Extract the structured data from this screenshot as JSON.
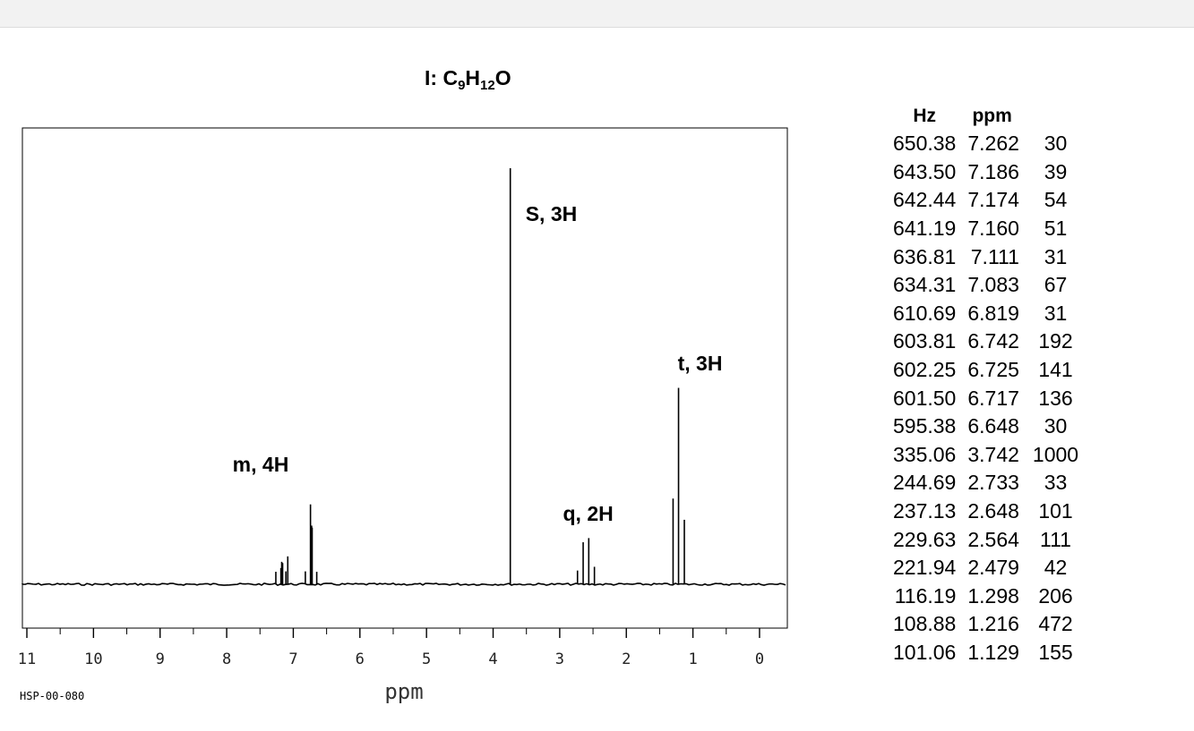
{
  "chart_data": {
    "type": "line",
    "title": "I: C9H12O",
    "title_parts": {
      "prefix": "I: C",
      "c_count": "9",
      "h_symbol": "H",
      "h_count": "12",
      "o_symbol": "O"
    },
    "xlabel": "ppm",
    "xlim": [
      11.0,
      -0.4
    ],
    "x_reversed": true,
    "x_ticks": [
      "11",
      "10",
      "9",
      "8",
      "7",
      "6",
      "5",
      "4",
      "3",
      "2",
      "1",
      "0"
    ],
    "grid": false,
    "annotations": [
      {
        "text": "m, 4H",
        "x": 7.1
      },
      {
        "text": "S, 3H",
        "x": 3.742
      },
      {
        "text": "q, 2H",
        "x": 2.6
      },
      {
        "text": "t, 3H",
        "x": 1.216
      }
    ],
    "peaks": [
      {
        "ppm": 7.262,
        "intensity": 30
      },
      {
        "ppm": 7.186,
        "intensity": 39
      },
      {
        "ppm": 7.174,
        "intensity": 54
      },
      {
        "ppm": 7.16,
        "intensity": 51
      },
      {
        "ppm": 7.111,
        "intensity": 31
      },
      {
        "ppm": 7.083,
        "intensity": 67
      },
      {
        "ppm": 6.819,
        "intensity": 31
      },
      {
        "ppm": 6.742,
        "intensity": 192
      },
      {
        "ppm": 6.725,
        "intensity": 141
      },
      {
        "ppm": 6.717,
        "intensity": 136
      },
      {
        "ppm": 6.648,
        "intensity": 30
      },
      {
        "ppm": 3.742,
        "intensity": 1000
      },
      {
        "ppm": 2.733,
        "intensity": 33
      },
      {
        "ppm": 2.648,
        "intensity": 101
      },
      {
        "ppm": 2.564,
        "intensity": 111
      },
      {
        "ppm": 2.479,
        "intensity": 42
      },
      {
        "ppm": 1.298,
        "intensity": 206
      },
      {
        "ppm": 1.216,
        "intensity": 472
      },
      {
        "ppm": 1.129,
        "intensity": 155
      }
    ],
    "line_color": "#000000"
  },
  "sample_id": "HSP-00-080",
  "peak_table": {
    "headers": [
      "Hz",
      "ppm",
      ""
    ],
    "rows": [
      [
        "650.38",
        "7.262",
        "30"
      ],
      [
        "643.50",
        "7.186",
        "39"
      ],
      [
        "642.44",
        "7.174",
        "54"
      ],
      [
        "641.19",
        "7.160",
        "51"
      ],
      [
        "636.81",
        "7.111",
        "31"
      ],
      [
        "634.31",
        "7.083",
        "67"
      ],
      [
        "610.69",
        "6.819",
        "31"
      ],
      [
        "603.81",
        "6.742",
        "192"
      ],
      [
        "602.25",
        "6.725",
        "141"
      ],
      [
        "601.50",
        "6.717",
        "136"
      ],
      [
        "595.38",
        "6.648",
        "30"
      ],
      [
        "335.06",
        "3.742",
        "1000"
      ],
      [
        "244.69",
        "2.733",
        "33"
      ],
      [
        "237.13",
        "2.648",
        "101"
      ],
      [
        "229.63",
        "2.564",
        "111"
      ],
      [
        "221.94",
        "2.479",
        "42"
      ],
      [
        "116.19",
        "1.298",
        "206"
      ],
      [
        "108.88",
        "1.216",
        "472"
      ],
      [
        "101.06",
        "1.129",
        "155"
      ]
    ]
  }
}
